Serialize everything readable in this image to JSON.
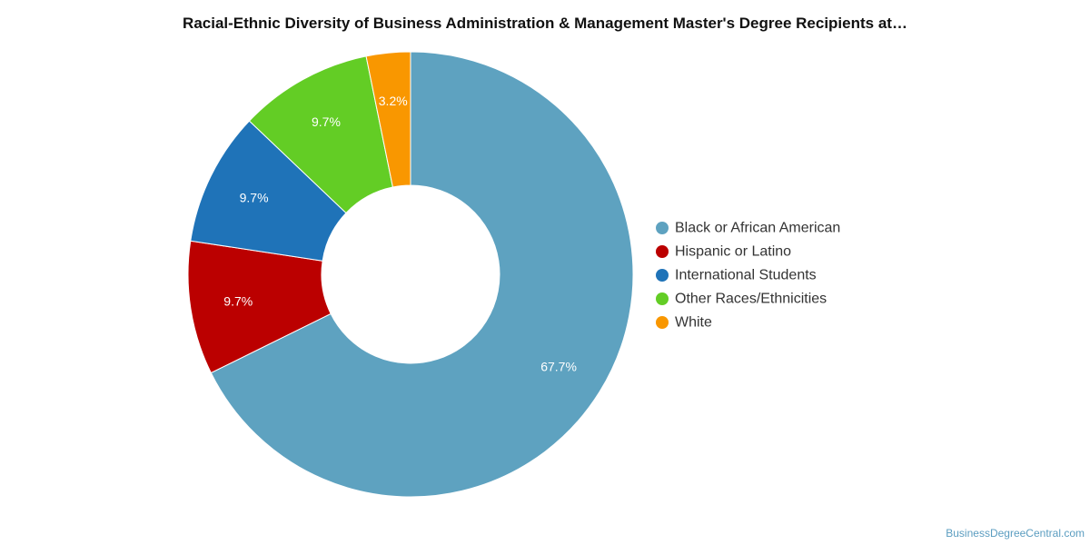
{
  "chart_data": {
    "type": "pie",
    "title": "Racial-Ethnic Diversity of Business Administration & Management Master's Degree Recipients at…",
    "donut": true,
    "legend_position": "right",
    "categories": [
      "Black or African American",
      "Hispanic or Latino",
      "International Students",
      "Other Races/Ethnicities",
      "White"
    ],
    "values": [
      67.7,
      9.7,
      9.7,
      9.7,
      3.2
    ],
    "labels": [
      "67.7%",
      "9.7%",
      "9.7%",
      "9.7%",
      "3.2%"
    ],
    "colors": [
      "#5ea2c0",
      "#bb0000",
      "#1f73b8",
      "#63cd25",
      "#f99700"
    ]
  },
  "credit": "BusinessDegreeCentral.com"
}
